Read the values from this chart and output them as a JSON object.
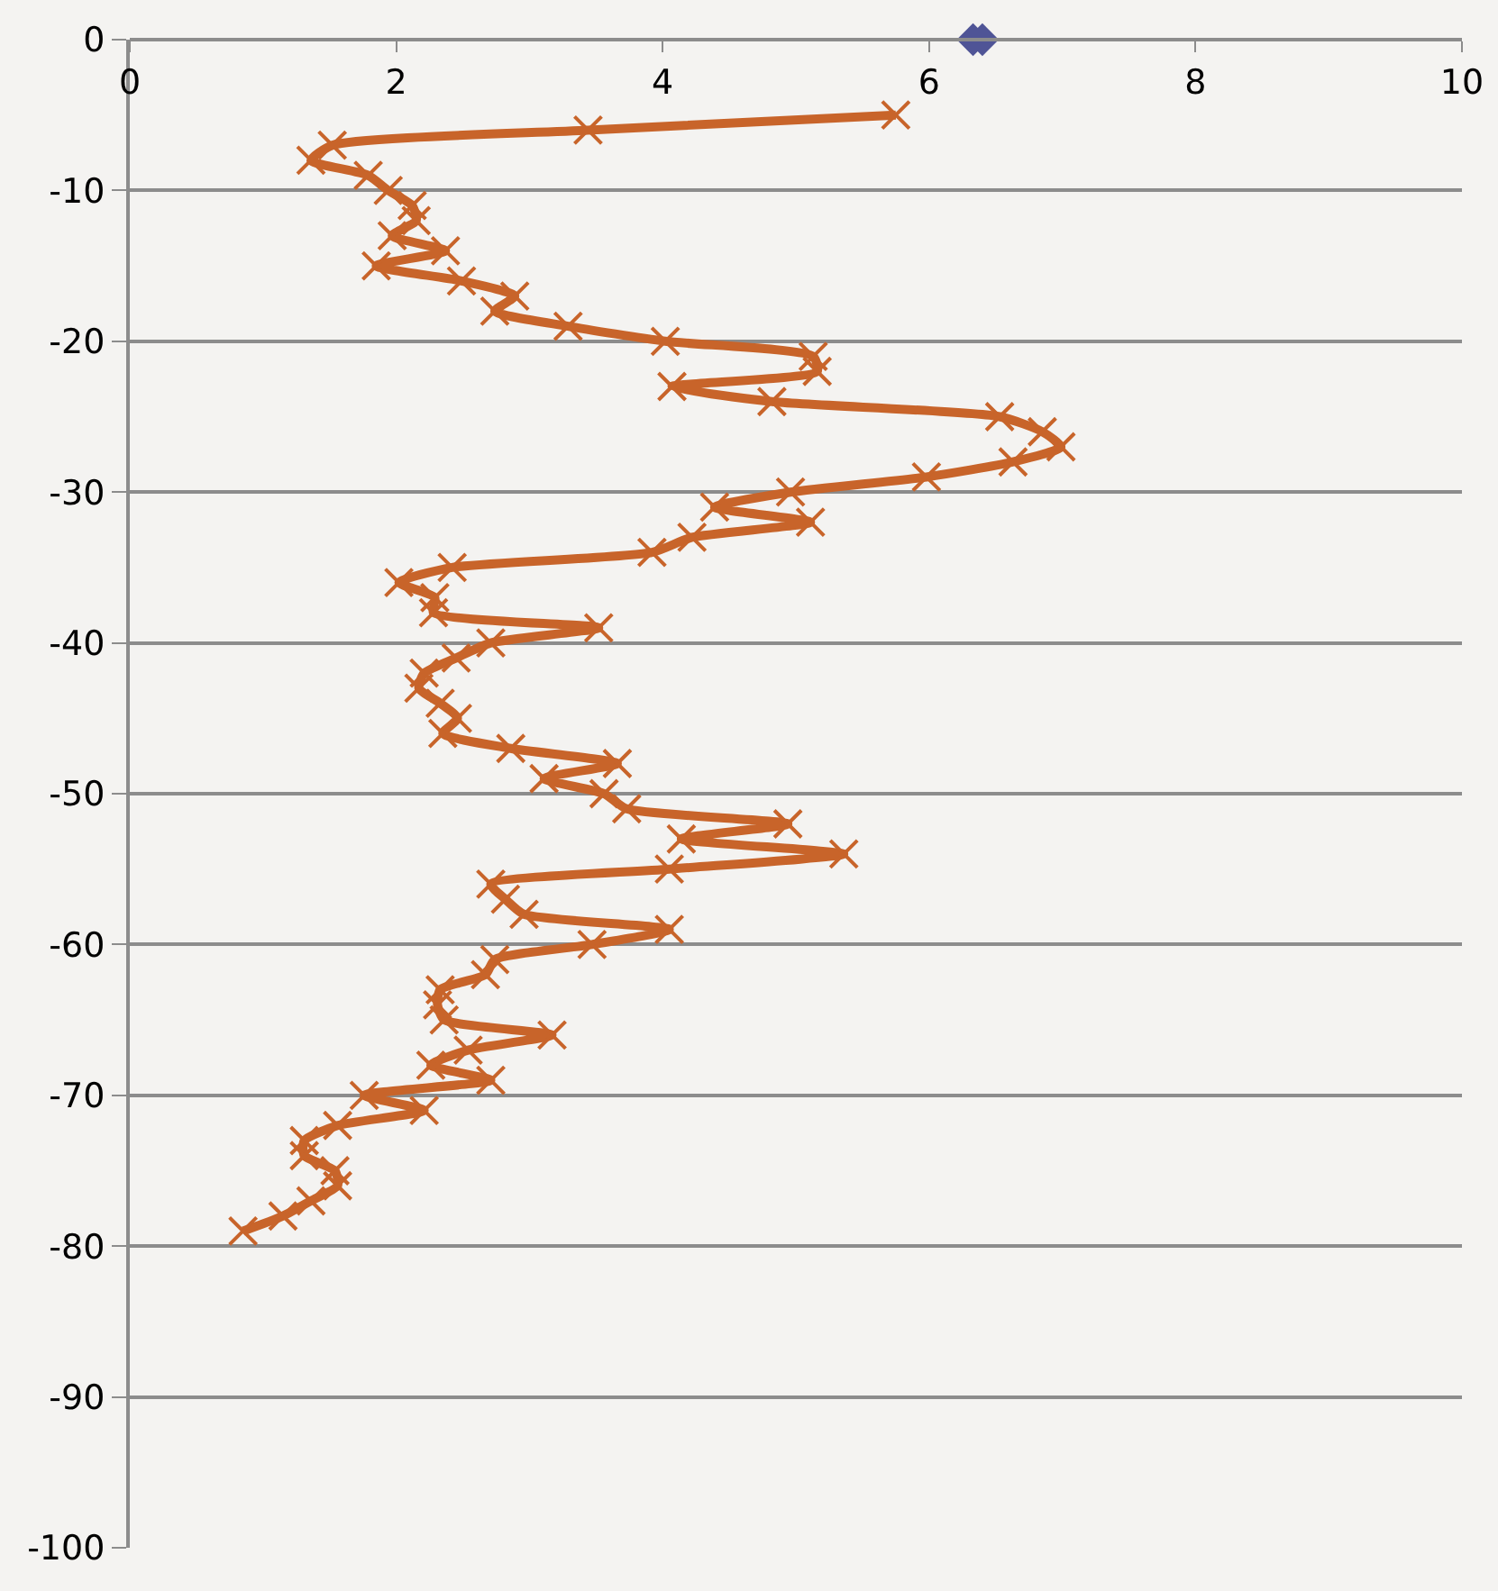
{
  "chart_data": {
    "type": "line",
    "xlim": [
      0,
      10
    ],
    "xticks": [
      0,
      2,
      4,
      6,
      8,
      10
    ],
    "ylim": [
      -100,
      0
    ],
    "yticks": [
      -100,
      -90,
      -80,
      -70,
      -60,
      -50,
      -40,
      -30,
      -20,
      -10,
      0
    ],
    "grid": "y",
    "legend": false,
    "line_style": "solid",
    "series": [
      {
        "type": "scatter",
        "color": "#4f5496",
        "marker": "diamond",
        "x": [
          6.33,
          6.4
        ],
        "values": [
          0,
          0
        ]
      },
      {
        "color": "#c8642a",
        "marker": "cross",
        "x": [
          5.75,
          3.44,
          1.52,
          1.36,
          1.79,
          1.94,
          2.12,
          2.15,
          1.97,
          2.37,
          1.85,
          2.49,
          2.89,
          2.74,
          3.29,
          4.02,
          5.13,
          5.16,
          4.07,
          4.82,
          6.53,
          6.85,
          6.99,
          6.63,
          5.98,
          4.96,
          4.39,
          5.11,
          4.22,
          3.92,
          2.42,
          2.02,
          2.29,
          2.28,
          3.52,
          2.71,
          2.45,
          2.21,
          2.17,
          2.33,
          2.46,
          2.35,
          2.86,
          3.66,
          3.11,
          3.56,
          3.73,
          4.94,
          4.14,
          5.36,
          4.05,
          2.71,
          2.82,
          2.96,
          4.05,
          3.47,
          2.74,
          2.67,
          2.33,
          2.31,
          2.36,
          3.17,
          2.54,
          2.26,
          2.71,
          1.76,
          2.21,
          1.56,
          1.31,
          1.31,
          1.54,
          1.56,
          1.36,
          1.15,
          0.85
        ],
        "values": [
          -5,
          -6,
          -7,
          -8,
          -9,
          -10,
          -11,
          -12,
          -13,
          -14,
          -15,
          -16,
          -17,
          -18,
          -19,
          -20,
          -21,
          -22,
          -23,
          -24,
          -25,
          -26,
          -27,
          -28,
          -29,
          -30,
          -31,
          -32,
          -33,
          -34,
          -35,
          -36,
          -37,
          -38,
          -39,
          -40,
          -41,
          -42,
          -43,
          -44,
          -45,
          -46,
          -47,
          -48,
          -49,
          -50,
          -51,
          -52,
          -53,
          -54,
          -55,
          -56,
          -57,
          -58,
          -59,
          -60,
          -61,
          -62,
          -63,
          -64,
          -65,
          -66,
          -67,
          -68,
          -69,
          -70,
          -71,
          -72,
          -73,
          -74,
          -75,
          -76,
          -77,
          -78,
          -79
        ]
      }
    ]
  }
}
